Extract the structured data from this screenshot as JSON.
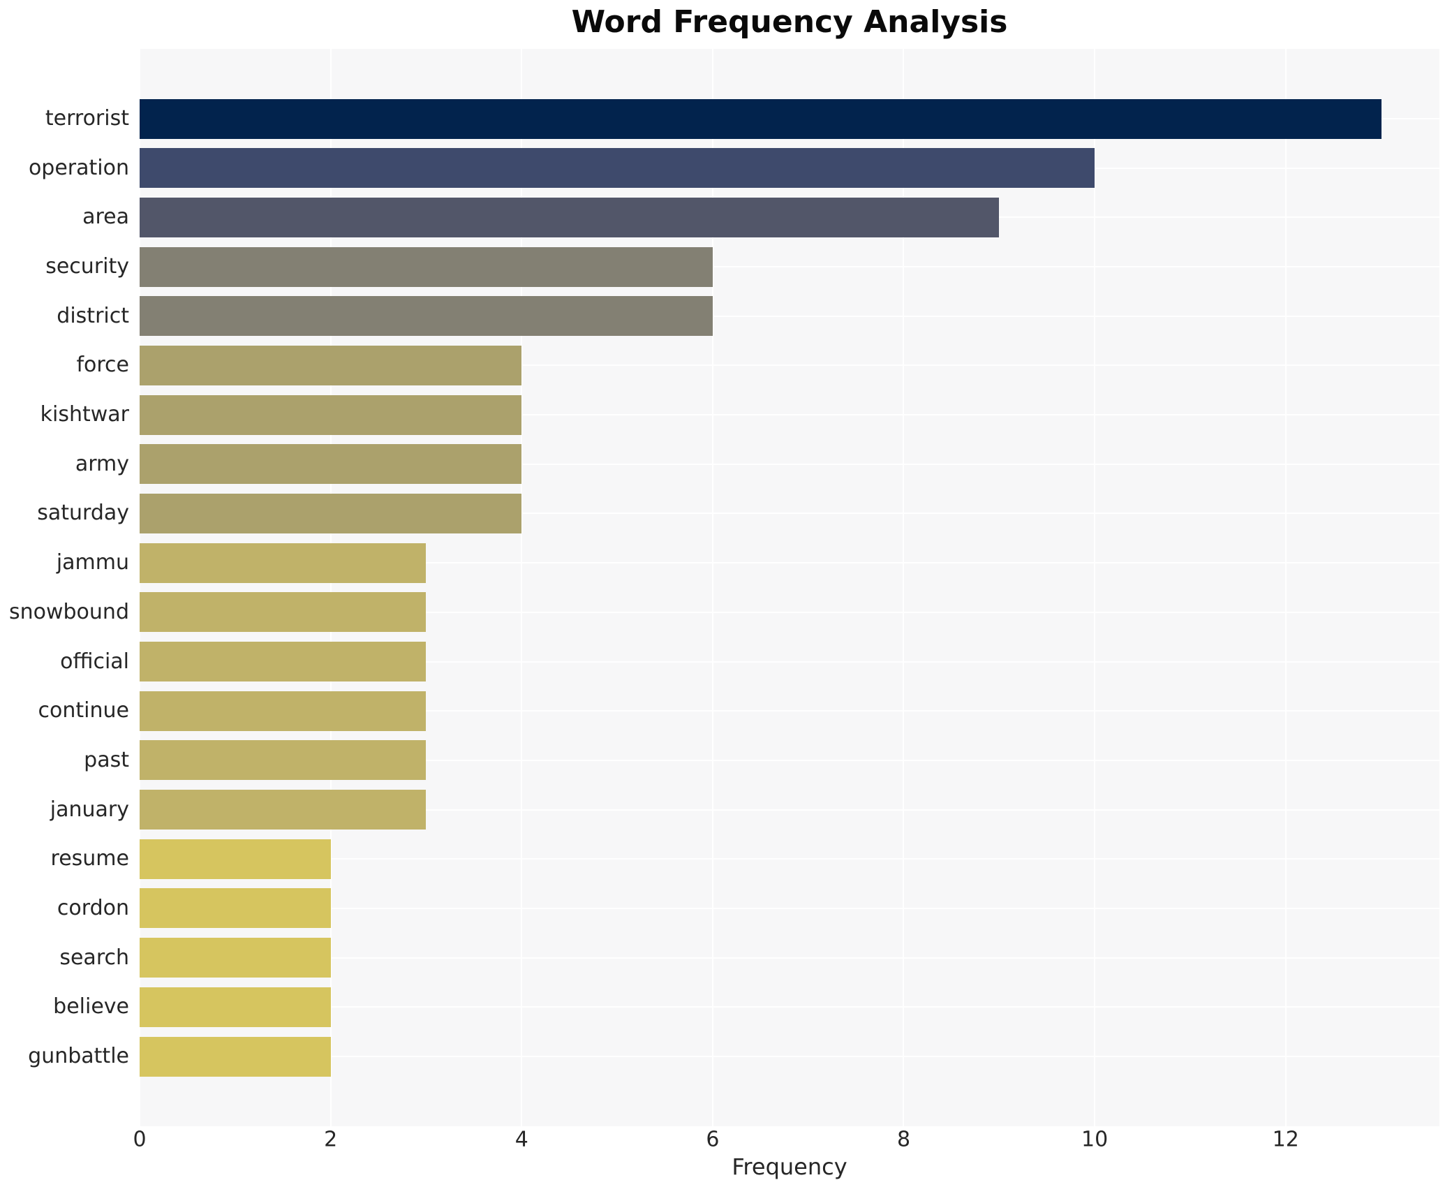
{
  "title": "Word Frequency Analysis",
  "chart_data": {
    "type": "bar",
    "orientation": "horizontal",
    "title": "Word Frequency Analysis",
    "xlabel": "Frequency",
    "ylabel": "",
    "categories": [
      "terrorist",
      "operation",
      "area",
      "security",
      "district",
      "force",
      "kishtwar",
      "army",
      "saturday",
      "jammu",
      "snowbound",
      "official",
      "continue",
      "past",
      "january",
      "resume",
      "cordon",
      "search",
      "believe",
      "gunbattle"
    ],
    "values": [
      13,
      10,
      9,
      6,
      6,
      4,
      4,
      4,
      4,
      3,
      3,
      3,
      3,
      3,
      3,
      2,
      2,
      2,
      2,
      2
    ],
    "bar_colors": [
      "#02234d",
      "#3e4a6c",
      "#525669",
      "#838073",
      "#838073",
      "#aba16c",
      "#aba16c",
      "#aba16c",
      "#aba16c",
      "#c0b269",
      "#c0b269",
      "#c0b269",
      "#c0b269",
      "#c0b269",
      "#c0b269",
      "#d6c55f",
      "#d6c55f",
      "#d6c55f",
      "#d6c55f",
      "#d6c55f"
    ],
    "xticks": [
      0,
      2,
      4,
      6,
      8,
      10,
      12
    ],
    "xlim": [
      0,
      13.61
    ],
    "grid": true,
    "legend": "none",
    "panel_bg": "#f7f7f8",
    "gridline_color": "#ffffff",
    "text_color": "#262626",
    "title_color": "#0a0a0a"
  }
}
